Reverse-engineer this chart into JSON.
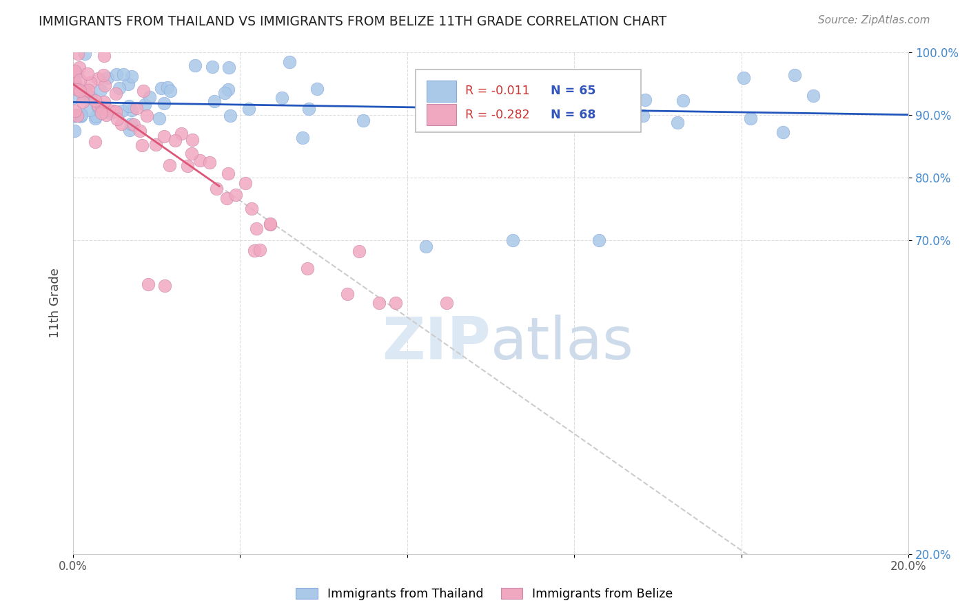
{
  "title": "IMMIGRANTS FROM THAILAND VS IMMIGRANTS FROM BELIZE 11TH GRADE CORRELATION CHART",
  "source": "Source: ZipAtlas.com",
  "xlabel_bottom": "Immigrants from Thailand",
  "xlabel_bottom2": "Immigrants from Belize",
  "ylabel": "11th Grade",
  "xlim": [
    0.0,
    0.2
  ],
  "ylim": [
    0.2,
    1.0
  ],
  "xtick_vals": [
    0.0,
    0.04,
    0.08,
    0.12,
    0.16,
    0.2
  ],
  "ytick_vals": [
    0.2,
    0.7,
    0.8,
    0.9,
    1.0
  ],
  "legend_R_blue": "-0.011",
  "legend_N_blue": "65",
  "legend_R_pink": "-0.282",
  "legend_N_pink": "68",
  "blue_color": "#aac8e8",
  "pink_color": "#f0a8c0",
  "trend_blue_color": "#2255bb",
  "trend_pink_color": "#dd5577",
  "dashed_color": "#cccccc",
  "watermark_color": "#dde8f5",
  "grid_color": "#dddddd",
  "ytick_color": "#4488cc",
  "title_color": "#222222",
  "source_color": "#888888"
}
